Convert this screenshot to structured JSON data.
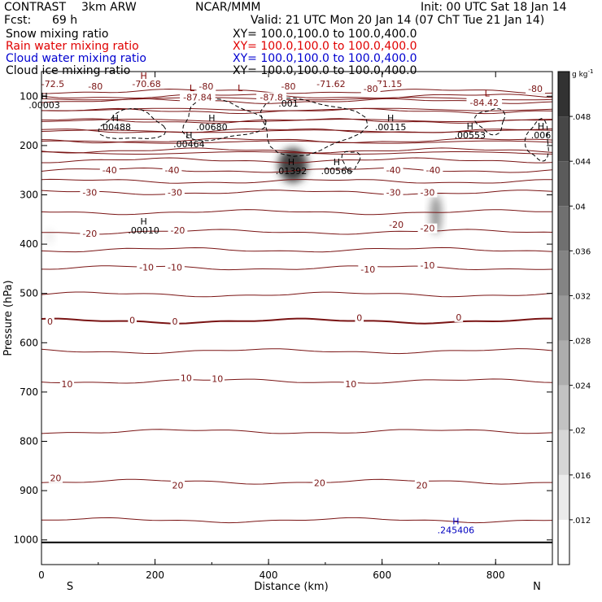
{
  "header": {
    "model": "CONTRAST",
    "run": "3km ARW",
    "org": "NCAR/MMM",
    "init": "Init: 00 UTC Sat 18 Jan 14",
    "fcst_label": "Fcst:",
    "fcst_value": "69 h",
    "valid": "Valid: 21 UTC Mon 20 Jan 14 (07 ChT Tue 21 Jan 14)"
  },
  "fields": [
    {
      "name": "Snow mixing ratio",
      "xy": "XY= 100.0,100.0 to 100.0,400.0",
      "color": "#000000"
    },
    {
      "name": "Rain water mixing ratio",
      "xy": "XY= 100.0,100.0 to 100.0,400.0",
      "color": "#e00000"
    },
    {
      "name": "Cloud water mixing ratio",
      "xy": "XY= 100.0,100.0 to 100.0,400.0",
      "color": "#0000d0"
    },
    {
      "name": "Cloud ice mixing ratio",
      "xy": "XY= 100.0,100.0 to 100.0,400.0",
      "color": "#000000"
    }
  ],
  "colorbar": {
    "unit": "g kg",
    "unit_sup": "-1",
    "ticks": [
      ".012",
      ".016",
      ".02",
      ".024",
      ".028",
      ".032",
      ".036",
      ".04",
      ".044",
      ".048"
    ],
    "tick_values": [
      0.012,
      0.016,
      0.02,
      0.024,
      0.028,
      0.032,
      0.036,
      0.04,
      0.044,
      0.048
    ],
    "range": [
      0.008,
      0.052
    ]
  },
  "chart_data": {
    "type": "cross-section contour",
    "xlabel": "Distance (km)",
    "ylabel": "Pressure (hPa)",
    "xlim": [
      0,
      900
    ],
    "ylim": [
      1050,
      50
    ],
    "x_ticks": [
      0,
      200,
      400,
      600,
      800
    ],
    "y_ticks": [
      100,
      200,
      300,
      400,
      500,
      600,
      700,
      800,
      900,
      1000
    ],
    "x_endpoints": {
      "left": "S",
      "right": "N"
    },
    "temperature_contour_levels": [
      -85,
      -80,
      -75,
      -70,
      -65,
      -60,
      -55,
      -50,
      -45,
      -40,
      -35,
      -30,
      -25,
      -20,
      -15,
      -10,
      -5,
      0,
      5,
      10,
      15,
      20,
      25
    ],
    "contour_labels": [
      {
        "x": 20,
        "p": 75,
        "text": "-72.5"
      },
      {
        "x": 185,
        "p": 75,
        "text": "-70.68"
      },
      {
        "x": 95,
        "p": 80,
        "text": "-80"
      },
      {
        "x": 290,
        "p": 80,
        "text": "-80"
      },
      {
        "x": 435,
        "p": 80,
        "text": "-80"
      },
      {
        "x": 610,
        "p": 75,
        "text": "-71.15"
      },
      {
        "x": 510,
        "p": 75,
        "text": "-71.62"
      },
      {
        "x": 580,
        "p": 85,
        "text": "-80"
      },
      {
        "x": 870,
        "p": 85,
        "text": "-80"
      },
      {
        "x": 275,
        "p": 102,
        "text": "-87.84"
      },
      {
        "x": 405,
        "p": 102,
        "text": "-87.8"
      },
      {
        "x": 780,
        "p": 113,
        "text": "-84.42"
      },
      {
        "x": 120,
        "p": 250,
        "text": "-40"
      },
      {
        "x": 230,
        "p": 250,
        "text": "-40"
      },
      {
        "x": 620,
        "p": 250,
        "text": "-40"
      },
      {
        "x": 690,
        "p": 250,
        "text": "-40"
      },
      {
        "x": 85,
        "p": 295,
        "text": "-30"
      },
      {
        "x": 235,
        "p": 295,
        "text": "-30"
      },
      {
        "x": 620,
        "p": 295,
        "text": "-30"
      },
      {
        "x": 680,
        "p": 295,
        "text": "-30"
      },
      {
        "x": 85,
        "p": 378,
        "text": "-20"
      },
      {
        "x": 240,
        "p": 372,
        "text": "-20"
      },
      {
        "x": 625,
        "p": 360,
        "text": "-20"
      },
      {
        "x": 680,
        "p": 368,
        "text": "-20"
      },
      {
        "x": 185,
        "p": 447,
        "text": "-10"
      },
      {
        "x": 235,
        "p": 447,
        "text": "-10"
      },
      {
        "x": 575,
        "p": 451,
        "text": "-10"
      },
      {
        "x": 680,
        "p": 443,
        "text": "-10"
      },
      {
        "x": 15,
        "p": 557,
        "text": "0"
      },
      {
        "x": 160,
        "p": 554,
        "text": "0"
      },
      {
        "x": 235,
        "p": 557,
        "text": "0"
      },
      {
        "x": 560,
        "p": 549,
        "text": "0"
      },
      {
        "x": 735,
        "p": 548,
        "text": "0"
      },
      {
        "x": 45,
        "p": 684,
        "text": "10"
      },
      {
        "x": 255,
        "p": 671,
        "text": "10"
      },
      {
        "x": 310,
        "p": 673,
        "text": "10"
      },
      {
        "x": 545,
        "p": 684,
        "text": "10"
      },
      {
        "x": 25,
        "p": 874,
        "text": "20"
      },
      {
        "x": 240,
        "p": 889,
        "text": "20"
      },
      {
        "x": 490,
        "p": 884,
        "text": "20"
      },
      {
        "x": 670,
        "p": 889,
        "text": "20"
      }
    ],
    "extrema_labels": [
      {
        "x": 180,
        "p": 65,
        "mark": "H",
        "text": "",
        "color": "#800000"
      },
      {
        "x": 265,
        "p": 90,
        "mark": "L",
        "text": "",
        "color": "#800000"
      },
      {
        "x": 350,
        "p": 90,
        "mark": "L",
        "text": "",
        "color": "#800000"
      },
      {
        "x": 785,
        "p": 100,
        "mark": "L",
        "text": "",
        "color": "#800000"
      },
      {
        "x": 5,
        "p": 106,
        "mark": "H",
        "text": ".00003",
        "color": "#000000"
      },
      {
        "x": 130,
        "p": 151,
        "mark": "H",
        "text": ".00488",
        "color": "#000000"
      },
      {
        "x": 300,
        "p": 151,
        "mark": "H",
        "text": ".00680",
        "color": "#000000"
      },
      {
        "x": 435,
        "p": 114,
        "mark": "",
        "text": ".001",
        "color": "#000000"
      },
      {
        "x": 615,
        "p": 151,
        "mark": "H",
        "text": ".00115",
        "color": "#000000"
      },
      {
        "x": 755,
        "p": 167,
        "mark": "H",
        "text": ".00553",
        "color": "#000000"
      },
      {
        "x": 880,
        "p": 167,
        "mark": "H",
        "text": ".006",
        "color": "#000000"
      },
      {
        "x": 260,
        "p": 185,
        "mark": "H",
        "text": ".00464",
        "color": "#000000"
      },
      {
        "x": 440,
        "p": 240,
        "mark": "H",
        "text": ".01392",
        "color": "#000000"
      },
      {
        "x": 520,
        "p": 240,
        "mark": "H",
        "text": ".00566",
        "color": "#000000"
      },
      {
        "x": 180,
        "p": 360,
        "mark": "H",
        "text": ".00010",
        "color": "#000000"
      },
      {
        "x": 730,
        "p": 968,
        "mark": "H",
        "text": ".245406",
        "color": "#0000c0"
      }
    ],
    "snow_shading": [
      {
        "x": 443,
        "p": 240,
        "rx": 18,
        "rp": 35,
        "value": 0.048
      },
      {
        "x": 695,
        "p": 340,
        "rx": 7,
        "rp": 40,
        "value": 0.03
      },
      {
        "x": 14,
        "p": 385,
        "rx": 5,
        "rp": 15,
        "value": 0.012
      }
    ],
    "cloud_ice_contours": [
      {
        "x": 160,
        "p": 160,
        "rx": 55,
        "rp": 30
      },
      {
        "x": 315,
        "p": 150,
        "rx": 70,
        "rp": 40
      },
      {
        "x": 470,
        "p": 160,
        "rx": 90,
        "rp": 55
      },
      {
        "x": 545,
        "p": 230,
        "rx": 15,
        "rp": 20
      },
      {
        "x": 792,
        "p": 150,
        "rx": 25,
        "rp": 25
      },
      {
        "x": 875,
        "p": 190,
        "rx": 20,
        "rp": 40
      }
    ],
    "ground_pressure": 1005
  }
}
